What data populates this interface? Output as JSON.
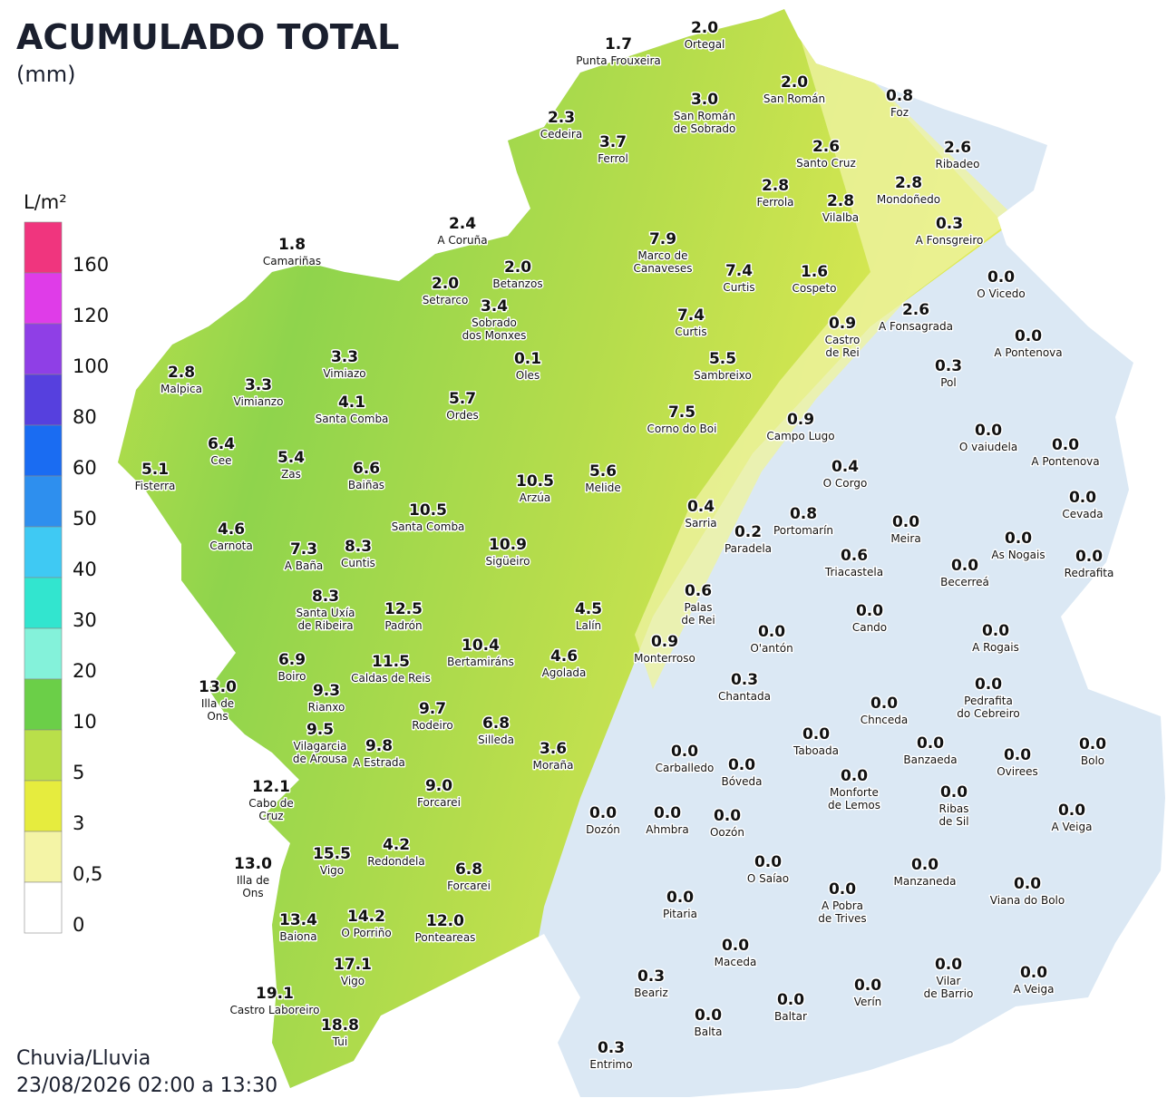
{
  "header": {
    "title": "ACUMULADO TOTAL",
    "subtitle": "(mm)"
  },
  "legend": {
    "unit": "L/m²",
    "items": [
      {
        "label": "160",
        "color": "#f0357e"
      },
      {
        "label": "120",
        "color": "#df3ce8"
      },
      {
        "label": "100",
        "color": "#8f3fe6"
      },
      {
        "label": "80",
        "color": "#5640de"
      },
      {
        "label": "60",
        "color": "#1a6cf2"
      },
      {
        "label": "50",
        "color": "#2e8fee"
      },
      {
        "label": "40",
        "color": "#3fc9f3"
      },
      {
        "label": "30",
        "color": "#32e5cf"
      },
      {
        "label": "20",
        "color": "#84f2da"
      },
      {
        "label": "10",
        "color": "#6bcf48"
      },
      {
        "label": "5",
        "color": "#b9df4a"
      },
      {
        "label": "3",
        "color": "#e6ec3e"
      },
      {
        "label": "0,5",
        "color": "#f4f4a6"
      },
      {
        "label": "0",
        "color": "#ffffff"
      }
    ]
  },
  "stations": [
    {
      "value": "2.0",
      "name": [
        "Ortegal"
      ]
    },
    {
      "value": "1.7",
      "name": [
        "Punta Frouxeira"
      ]
    },
    {
      "value": "2.0",
      "name": [
        "San Román"
      ]
    },
    {
      "value": "3.0",
      "name": [
        "San Román",
        "de Sobrado"
      ]
    },
    {
      "value": "0.8",
      "name": [
        "Foz"
      ]
    },
    {
      "value": "2.3",
      "name": [
        "Cedeira"
      ]
    },
    {
      "value": "3.7",
      "name": [
        "Ferrol"
      ]
    },
    {
      "value": "2.6",
      "name": [
        "Santo Cruz"
      ]
    },
    {
      "value": "2.6",
      "name": [
        "Ribadeo"
      ]
    },
    {
      "value": "2.8",
      "name": [
        "Ferrola"
      ]
    },
    {
      "value": "2.8",
      "name": [
        "Vilalba"
      ]
    },
    {
      "value": "2.8",
      "name": [
        "Mondoñedo"
      ]
    },
    {
      "value": "0.3",
      "name": [
        "A Fonsgreiro"
      ]
    },
    {
      "value": "2.4",
      "name": [
        "A Coruña"
      ]
    },
    {
      "value": "1.8",
      "name": [
        "Camariñas"
      ]
    },
    {
      "value": "7.9",
      "name": [
        "Marco de",
        "Canaveses"
      ]
    },
    {
      "value": "2.0",
      "name": [
        "Betanzos"
      ]
    },
    {
      "value": "2.0",
      "name": [
        "Setrarco"
      ]
    },
    {
      "value": "7.4",
      "name": [
        "Curtis"
      ]
    },
    {
      "value": "1.6",
      "name": [
        "Cospeto"
      ]
    },
    {
      "value": "0.0",
      "name": [
        "O Vicedo"
      ]
    },
    {
      "value": "3.4",
      "name": [
        "Sobrado",
        "dos Monxes"
      ]
    },
    {
      "value": "2.6",
      "name": [
        "A Fonsagrada"
      ]
    },
    {
      "value": "7.4",
      "name": [
        "Curtis"
      ]
    },
    {
      "value": "0.9",
      "name": [
        "Castro",
        "de Rei"
      ]
    },
    {
      "value": "0.0",
      "name": [
        "A Pontenova"
      ]
    },
    {
      "value": "3.3",
      "name": [
        "Vimiazo"
      ]
    },
    {
      "value": "0.1",
      "name": [
        "Oles"
      ]
    },
    {
      "value": "5.5",
      "name": [
        "Sambreixo"
      ]
    },
    {
      "value": "0.3",
      "name": [
        "Pol"
      ]
    },
    {
      "value": "2.8",
      "name": [
        "Malpica"
      ]
    },
    {
      "value": "3.3",
      "name": [
        "Vimianzo"
      ]
    },
    {
      "value": "4.1",
      "name": [
        "Santa Comba"
      ]
    },
    {
      "value": "5.7",
      "name": [
        "Ordes"
      ]
    },
    {
      "value": "7.5",
      "name": [
        "Corno do Boi"
      ]
    },
    {
      "value": "0.9",
      "name": [
        "Campo Lugo"
      ]
    },
    {
      "value": "0.0",
      "name": [
        "O vaiudela"
      ]
    },
    {
      "value": "0.0",
      "name": [
        "A Pontenova"
      ]
    },
    {
      "value": "6.4",
      "name": [
        "Cee"
      ]
    },
    {
      "value": "5.1",
      "name": [
        "Fisterra"
      ]
    },
    {
      "value": "5.4",
      "name": [
        "Zas"
      ]
    },
    {
      "value": "6.6",
      "name": [
        "Baiñas"
      ]
    },
    {
      "value": "10.5",
      "name": [
        "Arzúa"
      ]
    },
    {
      "value": "5.6",
      "name": [
        "Melide"
      ]
    },
    {
      "value": "0.4",
      "name": [
        "O Corgo"
      ]
    },
    {
      "value": "0.0",
      "name": [
        "Cevada"
      ]
    },
    {
      "value": "10.5",
      "name": [
        "Santa Comba"
      ]
    },
    {
      "value": "0.4",
      "name": [
        "Sarria"
      ]
    },
    {
      "value": "0.8",
      "name": [
        "Portomarín"
      ]
    },
    {
      "value": "0.0",
      "name": [
        "Meira"
      ]
    },
    {
      "value": "4.6",
      "name": [
        "Carnota"
      ]
    },
    {
      "value": "0.2",
      "name": [
        "Paradela"
      ]
    },
    {
      "value": "0.0",
      "name": [
        "As Nogais"
      ]
    },
    {
      "value": "7.3",
      "name": [
        "A Baña"
      ]
    },
    {
      "value": "8.3",
      "name": [
        "Cuntis"
      ]
    },
    {
      "value": "10.9",
      "name": [
        "Sigüeiro"
      ]
    },
    {
      "value": "0.6",
      "name": [
        "Triacastela"
      ]
    },
    {
      "value": "0.0",
      "name": [
        "Becerreá"
      ]
    },
    {
      "value": "0.0",
      "name": [
        "Redrafita"
      ]
    },
    {
      "value": "0.6",
      "name": [
        "Palas",
        "de Rei"
      ]
    },
    {
      "value": "8.3",
      "name": [
        "Santa Uxía",
        "de Ribeira"
      ]
    },
    {
      "value": "12.5",
      "name": [
        "Padrón"
      ]
    },
    {
      "value": "4.5",
      "name": [
        "Lalín"
      ]
    },
    {
      "value": "0.0",
      "name": [
        "Cando"
      ]
    },
    {
      "value": "0.0",
      "name": [
        "O'antón"
      ]
    },
    {
      "value": "0.0",
      "name": [
        "A Rogais"
      ]
    },
    {
      "value": "0.9",
      "name": [
        "Monterroso"
      ]
    },
    {
      "value": "6.9",
      "name": [
        "Boiro"
      ]
    },
    {
      "value": "11.5",
      "name": [
        "Caldas de Reis"
      ]
    },
    {
      "value": "10.4",
      "name": [
        "Bertamiráns"
      ]
    },
    {
      "value": "4.6",
      "name": [
        "Agolada"
      ]
    },
    {
      "value": "13.0",
      "name": [
        "Illa de",
        "Ons"
      ]
    },
    {
      "value": "9.3",
      "name": [
        "Rianxo"
      ]
    },
    {
      "value": "0.3",
      "name": [
        "Chantada"
      ]
    },
    {
      "value": "0.0",
      "name": [
        "Chnceda"
      ]
    },
    {
      "value": "0.0",
      "name": [
        "Pedrafita",
        "do Cebreiro"
      ]
    },
    {
      "value": "9.7",
      "name": [
        "Rodeiro"
      ]
    },
    {
      "value": "6.8",
      "name": [
        "Silleda"
      ]
    },
    {
      "value": "9.5",
      "name": [
        "Vilagarcia",
        "de Arousa"
      ]
    },
    {
      "value": "9.8",
      "name": [
        "A Estrada"
      ]
    },
    {
      "value": "3.6",
      "name": [
        "Moraña"
      ]
    },
    {
      "value": "0.0",
      "name": [
        "Taboada"
      ]
    },
    {
      "value": "0.0",
      "name": [
        "Carballedo"
      ]
    },
    {
      "value": "0.0",
      "name": [
        "Bóveda"
      ]
    },
    {
      "value": "0.0",
      "name": [
        "Banzaeda"
      ]
    },
    {
      "value": "0.0",
      "name": [
        "Ovirees"
      ]
    },
    {
      "value": "0.0",
      "name": [
        "Bolo"
      ]
    },
    {
      "value": "12.1",
      "name": [
        "Cabo de",
        "Cruz"
      ]
    },
    {
      "value": "9.0",
      "name": [
        "Forcarei"
      ]
    },
    {
      "value": "0.0",
      "name": [
        "Monforte",
        "de Lemos"
      ]
    },
    {
      "value": "0.0",
      "name": [
        "Ribas",
        "de Sil"
      ]
    },
    {
      "value": "0.0",
      "name": [
        "Dozón"
      ]
    },
    {
      "value": "0.0",
      "name": [
        "Ahmbra"
      ]
    },
    {
      "value": "0.0",
      "name": [
        "Oozón"
      ]
    },
    {
      "value": "0.0",
      "name": [
        "A Veiga"
      ]
    },
    {
      "value": "4.2",
      "name": [
        "Redondela"
      ]
    },
    {
      "value": "15.5",
      "name": [
        "Vigo"
      ]
    },
    {
      "value": "13.0",
      "name": [
        "Illa de",
        "Ons"
      ]
    },
    {
      "value": "6.8",
      "name": [
        "Forcarei"
      ]
    },
    {
      "value": "0.0",
      "name": [
        "O Saíao"
      ]
    },
    {
      "value": "0.0",
      "name": [
        "Manzaneda"
      ]
    },
    {
      "value": "0.0",
      "name": [
        "A Pobra",
        "de Trives"
      ]
    },
    {
      "value": "0.0",
      "name": [
        "Viana do Bolo"
      ]
    },
    {
      "value": "0.0",
      "name": [
        "Pitaria"
      ]
    },
    {
      "value": "13.4",
      "name": [
        "Baiona"
      ]
    },
    {
      "value": "14.2",
      "name": [
        "O Porriño"
      ]
    },
    {
      "value": "12.0",
      "name": [
        "Ponteareas"
      ]
    },
    {
      "value": "0.0",
      "name": [
        "Maceda"
      ]
    },
    {
      "value": "0.0",
      "name": [
        "Vilar",
        "de Barrio"
      ]
    },
    {
      "value": "0.0",
      "name": [
        "A Veiga"
      ]
    },
    {
      "value": "17.1",
      "name": [
        "Vigo"
      ]
    },
    {
      "value": "0.3",
      "name": [
        "Beariz"
      ]
    },
    {
      "value": "0.0",
      "name": [
        "Verín"
      ]
    },
    {
      "value": "19.1",
      "name": [
        "Castro Laboreiro"
      ]
    },
    {
      "value": "0.0",
      "name": [
        "Baltar"
      ]
    },
    {
      "value": "0.0",
      "name": [
        "Balta"
      ]
    },
    {
      "value": "18.8",
      "name": [
        "Tui"
      ]
    },
    {
      "value": "0.3",
      "name": [
        "Entrimo"
      ]
    }
  ],
  "footer": {
    "line1": "Chuvia/Lluvia",
    "line2": "23/08/2026 02:00 a 13:30"
  }
}
